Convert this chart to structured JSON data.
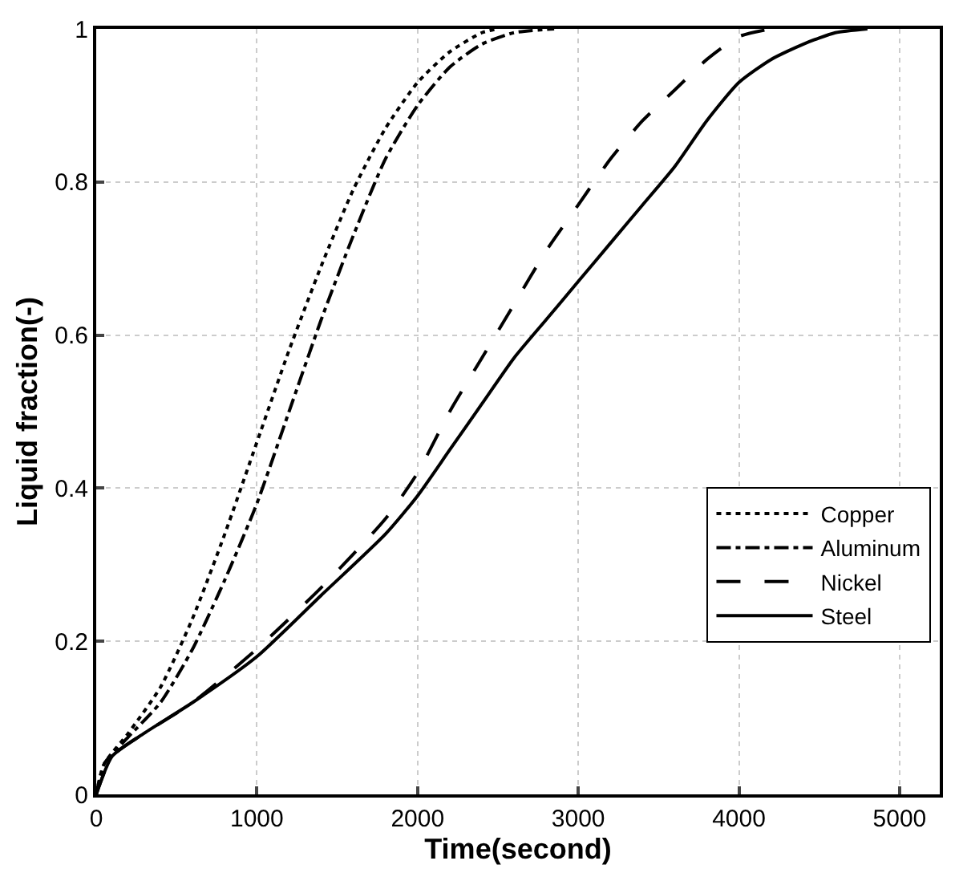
{
  "chart_data": {
    "type": "line",
    "xlabel": "Time(second)",
    "ylabel": "Liquid fraction(-)",
    "xlim": [
      0,
      5250
    ],
    "ylim": [
      0,
      1
    ],
    "xticks": [
      0,
      1000,
      2000,
      3000,
      4000,
      5000
    ],
    "yticks": [
      0,
      0.2,
      0.4,
      0.6,
      0.8,
      1
    ],
    "grid": true,
    "legend": "right",
    "marker": "none",
    "series": [
      {
        "name": "Copper",
        "color": "#000000",
        "line_style": "dotted",
        "x": [
          0,
          50,
          200,
          400,
          600,
          800,
          1000,
          1200,
          1400,
          1600,
          1800,
          2000,
          2200,
          2400,
          2500
        ],
        "values": [
          0,
          0.04,
          0.08,
          0.14,
          0.23,
          0.34,
          0.46,
          0.58,
          0.69,
          0.79,
          0.87,
          0.93,
          0.97,
          0.995,
          1
        ]
      },
      {
        "name": "Aluminum",
        "color": "#000000",
        "line_style": "dashdot",
        "x": [
          0,
          50,
          200,
          400,
          600,
          800,
          1000,
          1200,
          1400,
          1600,
          1800,
          2000,
          2200,
          2400,
          2600,
          2850
        ],
        "values": [
          0,
          0.04,
          0.075,
          0.12,
          0.19,
          0.28,
          0.38,
          0.5,
          0.62,
          0.73,
          0.83,
          0.9,
          0.95,
          0.98,
          0.995,
          1
        ]
      },
      {
        "name": "Nickel",
        "color": "#000000",
        "line_style": "longdash",
        "x": [
          0,
          100,
          300,
          600,
          1000,
          1400,
          1800,
          2000,
          2200,
          2400,
          2600,
          2800,
          3000,
          3200,
          3400,
          3600,
          3800,
          4000,
          4200
        ],
        "values": [
          0,
          0.05,
          0.08,
          0.12,
          0.19,
          0.27,
          0.36,
          0.42,
          0.5,
          0.57,
          0.64,
          0.71,
          0.77,
          0.83,
          0.88,
          0.92,
          0.96,
          0.99,
          1
        ]
      },
      {
        "name": "Steel",
        "color": "#000000",
        "line_style": "solid",
        "x": [
          0,
          100,
          300,
          600,
          1000,
          1400,
          1800,
          2000,
          2200,
          2400,
          2600,
          2800,
          3000,
          3200,
          3400,
          3600,
          3800,
          4000,
          4200,
          4400,
          4600,
          4800
        ],
        "values": [
          0,
          0.05,
          0.08,
          0.12,
          0.18,
          0.26,
          0.34,
          0.39,
          0.45,
          0.51,
          0.57,
          0.62,
          0.67,
          0.72,
          0.77,
          0.82,
          0.88,
          0.93,
          0.96,
          0.98,
          0.995,
          1
        ]
      }
    ]
  }
}
